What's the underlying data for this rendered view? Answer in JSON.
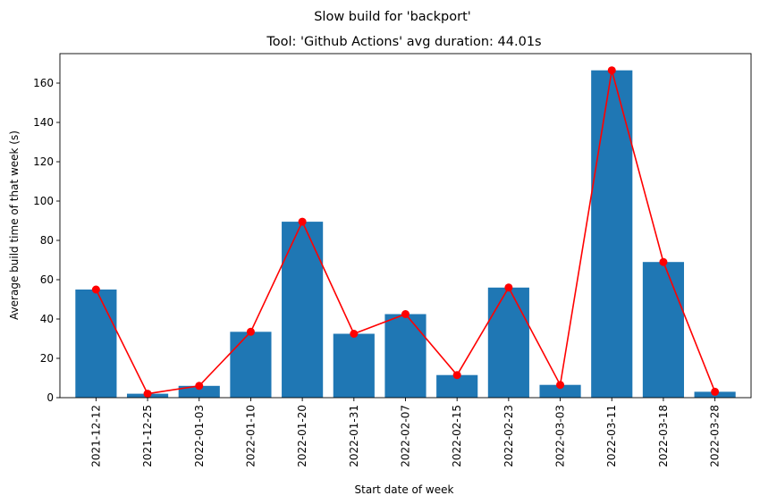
{
  "chart_data": {
    "type": "bar",
    "suptitle": "Slow build for 'backport'",
    "title": "Tool: 'Github Actions' avg duration: 44.01s",
    "xlabel": "Start date of week",
    "ylabel": "Average build time of that week (s)",
    "categories": [
      "2021-12-12",
      "2021-12-25",
      "2022-01-03",
      "2022-01-10",
      "2022-01-20",
      "2022-01-31",
      "2022-02-07",
      "2022-02-15",
      "2022-02-23",
      "2022-03-03",
      "2022-03-11",
      "2022-03-18",
      "2022-03-28"
    ],
    "values": [
      55,
      2,
      6,
      33.5,
      89.5,
      32.5,
      42.5,
      11.5,
      56,
      6.5,
      166.5,
      69,
      3
    ],
    "ylim": [
      0,
      175
    ],
    "yticks": [
      0,
      20,
      40,
      60,
      80,
      100,
      120,
      140,
      160
    ],
    "grid": false,
    "bar_color": "#1f77b4",
    "line_color": "#ff0000",
    "overlay_line": true,
    "x_tick_rotation_deg": 90
  }
}
